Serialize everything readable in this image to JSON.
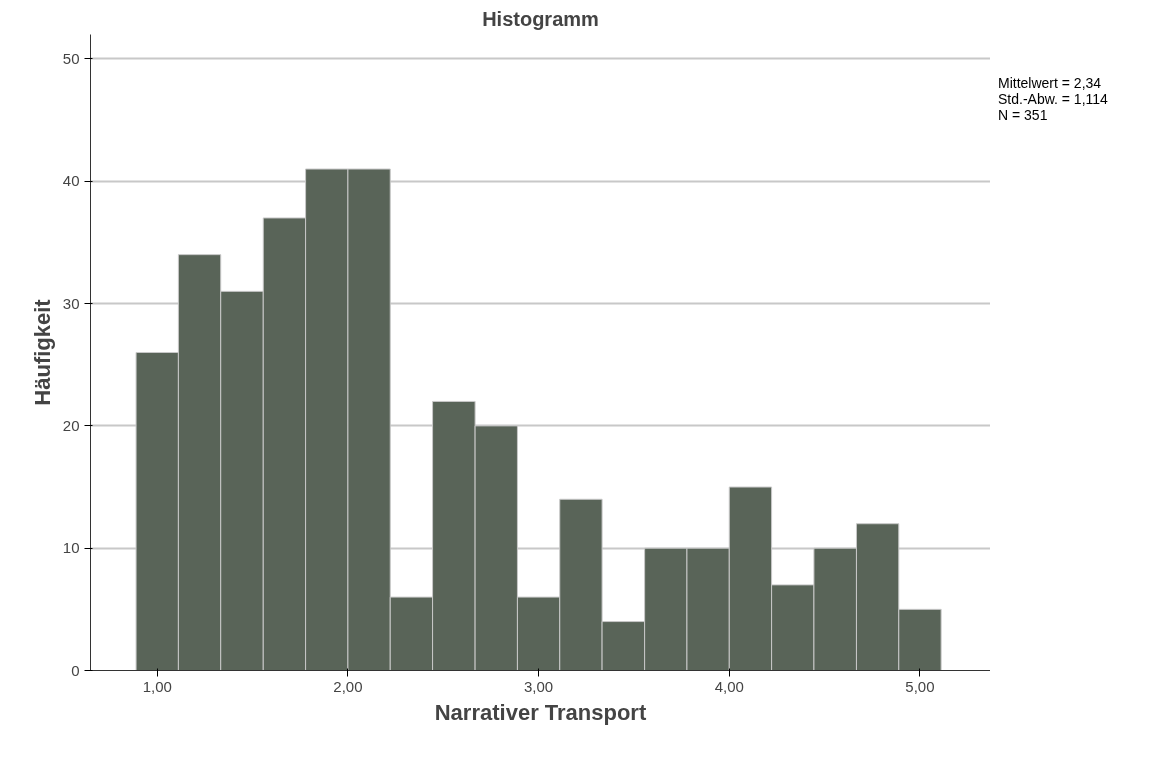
{
  "chart_data": {
    "type": "histogram",
    "title": "Histogramm",
    "xlabel": "Narrativer Transport",
    "ylabel": "Häufigkeit",
    "bins": [
      0.889,
      1.111,
      1.333,
      1.556,
      1.778,
      2.0,
      2.222,
      2.444,
      2.667,
      2.889,
      3.111,
      3.333,
      3.556,
      3.778,
      4.0,
      4.222,
      4.444,
      4.667,
      4.889,
      5.111
    ],
    "values": [
      26,
      34,
      31,
      37,
      41,
      41,
      6,
      22,
      20,
      6,
      14,
      4,
      10,
      10,
      15,
      7,
      10,
      12,
      5
    ],
    "color": "#596458",
    "xlim": [
      0.65,
      5.37
    ],
    "ylim": [
      0,
      52
    ],
    "xticks": [
      {
        "value": 1,
        "label": "1,00"
      },
      {
        "value": 2,
        "label": "2,00"
      },
      {
        "value": 3,
        "label": "3,00"
      },
      {
        "value": 4,
        "label": "4,00"
      },
      {
        "value": 5,
        "label": "5,00"
      }
    ],
    "yticks": [
      0,
      10,
      20,
      30,
      40,
      50
    ],
    "grid": "y",
    "annotations": [
      "Mittelwert = 2,34",
      "Std.-Abw. = 1,114",
      "N = 351"
    ]
  }
}
